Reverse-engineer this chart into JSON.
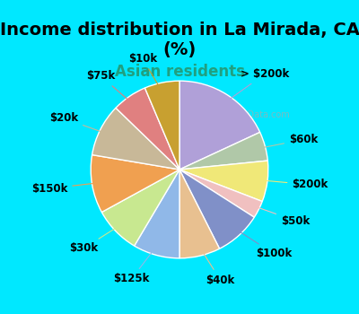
{
  "title": "Income distribution in La Mirada, CA\n(%)",
  "subtitle": "Asian residents",
  "labels": [
    "> $200k",
    "$60k",
    "$200k",
    "$50k",
    "$100k",
    "$40k",
    "$125k",
    "$30k",
    "$150k",
    "$20k",
    "$75k",
    "$10k"
  ],
  "sizes": [
    17,
    5,
    7,
    3,
    8,
    7,
    8,
    8,
    10,
    9,
    6,
    6
  ],
  "colors": [
    "#b0a0d8",
    "#b0c8a8",
    "#f0e878",
    "#f0c0c0",
    "#8090c8",
    "#e8c090",
    "#90b8e8",
    "#c8e890",
    "#f0a050",
    "#c8b898",
    "#e08080",
    "#c8a030"
  ],
  "title_fontsize": 14,
  "subtitle_fontsize": 12,
  "subtitle_color": "#20a080",
  "background_top": "#00e8ff",
  "background_chart": "#e8f5e8",
  "label_fontsize": 8.5,
  "watermark": "City-Data.com"
}
